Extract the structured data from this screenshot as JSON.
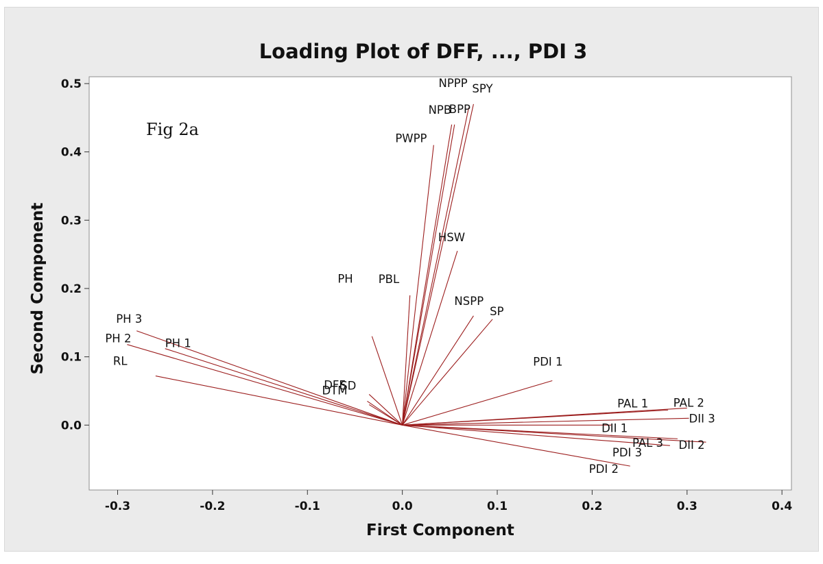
{
  "chart_data": {
    "type": "scatter",
    "subtype": "loading-plot (vectors from origin)",
    "title": "Loading Plot of DFF, ..., PDI 3",
    "xlabel": "First Component",
    "ylabel": "Second Component",
    "annotation": "Fig 2a",
    "xlim": [
      -0.33,
      0.41
    ],
    "ylim": [
      -0.095,
      0.51
    ],
    "xticks": [
      "-0.3",
      "-0.2",
      "-0.1",
      "0.0",
      "0.1",
      "0.2",
      "0.3",
      "0.4"
    ],
    "yticks": [
      "0.0",
      "0.1",
      "0.2",
      "0.3",
      "0.4",
      "0.5"
    ],
    "grid": false,
    "line_color": "#9b1c1c",
    "plot_background": "#ffffff",
    "outer_background": "#ebebeb",
    "variables": [
      {
        "label": "DFF",
        "x": -0.035,
        "y": 0.045
      },
      {
        "label": "DTM",
        "x": -0.037,
        "y": 0.035
      },
      {
        "label": "SD",
        "x": -0.035,
        "y": 0.03
      },
      {
        "label": "PH",
        "x": -0.032,
        "y": 0.13
      },
      {
        "label": "PBL",
        "x": 0.008,
        "y": 0.19
      },
      {
        "label": "PWPP",
        "x": 0.033,
        "y": 0.41
      },
      {
        "label": "NPB",
        "x": 0.052,
        "y": 0.44
      },
      {
        "label": "BPP",
        "x": 0.055,
        "y": 0.44
      },
      {
        "label": "NPPP",
        "x": 0.07,
        "y": 0.465
      },
      {
        "label": "SPY",
        "x": 0.075,
        "y": 0.47
      },
      {
        "label": "HSW",
        "x": 0.058,
        "y": 0.255
      },
      {
        "label": "NSPP",
        "x": 0.075,
        "y": 0.16
      },
      {
        "label": "SP",
        "x": 0.095,
        "y": 0.155
      },
      {
        "label": "PDI 1",
        "x": 0.158,
        "y": 0.065
      },
      {
        "label": "PAL 1",
        "x": 0.28,
        "y": 0.022
      },
      {
        "label": "PAL 2",
        "x": 0.3,
        "y": 0.025
      },
      {
        "label": "DII 3",
        "x": 0.302,
        "y": 0.01
      },
      {
        "label": "DII 1",
        "x": 0.22,
        "y": 0.0
      },
      {
        "label": "PAL 3",
        "x": 0.29,
        "y": -0.02
      },
      {
        "label": "DII 2",
        "x": 0.32,
        "y": -0.025
      },
      {
        "label": "PDI 3",
        "x": 0.282,
        "y": -0.03
      },
      {
        "label": "PDI 2",
        "x": 0.24,
        "y": -0.06
      },
      {
        "label": "PH 3",
        "x": -0.28,
        "y": 0.138
      },
      {
        "label": "PH 2",
        "x": -0.29,
        "y": 0.118
      },
      {
        "label": "PH 1",
        "x": -0.25,
        "y": 0.112
      },
      {
        "label": "RL",
        "x": -0.26,
        "y": 0.072
      }
    ]
  }
}
